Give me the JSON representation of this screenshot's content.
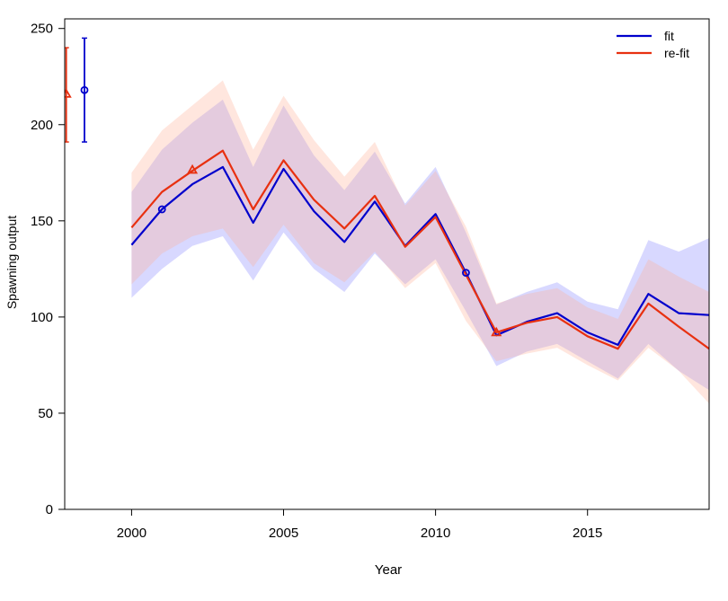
{
  "chart_data": {
    "type": "line",
    "title": "",
    "xlabel": "Year",
    "ylabel": "Spawning output",
    "xlim": [
      1997.8,
      2019
    ],
    "ylim": [
      0,
      255
    ],
    "x_ticks": [
      2000,
      2005,
      2010,
      2015
    ],
    "y_ticks": [
      0,
      50,
      100,
      150,
      200,
      250
    ],
    "grid": false,
    "legend_position": "top-right",
    "series": [
      {
        "name": "fit",
        "color": "#0000cc",
        "band_color": "#7d7dff",
        "x": [
          2000,
          2001,
          2002,
          2003,
          2004,
          2005,
          2006,
          2007,
          2008,
          2009,
          2010,
          2011,
          2012,
          2013,
          2014,
          2015,
          2016,
          2017,
          2018,
          2019
        ],
        "values": [
          137.5,
          156,
          169,
          178,
          149,
          177,
          155,
          139,
          160,
          137,
          153.5,
          123,
          90.5,
          97.5,
          102,
          92,
          85.5,
          112,
          102,
          101
        ],
        "lower": [
          110,
          125,
          137,
          142,
          119,
          144,
          125,
          113,
          133,
          117,
          130,
          103,
          74.5,
          82,
          86,
          77,
          68,
          86,
          72,
          62
        ],
        "upper": [
          165,
          187,
          201,
          213,
          178,
          210,
          184,
          166,
          186,
          159,
          178,
          144,
          106.5,
          113,
          118,
          108,
          104,
          140,
          134,
          141
        ],
        "marker": "circle",
        "marker_points": [
          {
            "x": 2001,
            "y": 156
          },
          {
            "x": 2011,
            "y": 123
          }
        ],
        "virgin": {
          "x": 1998.45,
          "y": 218,
          "lower": 191,
          "upper": 245
        }
      },
      {
        "name": "re-fit",
        "color": "#e83010",
        "band_color": "#ffab91",
        "x": [
          2000,
          2001,
          2002,
          2003,
          2004,
          2005,
          2006,
          2007,
          2008,
          2009,
          2010,
          2011,
          2012,
          2013,
          2014,
          2015,
          2016,
          2017,
          2018,
          2019
        ],
        "values": [
          146.5,
          165,
          176,
          186.5,
          156,
          181.5,
          161,
          146,
          163,
          136.5,
          152,
          122,
          92,
          97,
          100,
          90,
          83.5,
          107,
          95,
          83.5
        ],
        "lower": [
          117,
          133,
          142,
          146,
          126,
          148,
          128,
          118,
          134,
          115,
          128,
          98,
          77,
          81,
          84,
          75,
          67,
          84,
          72,
          55
        ],
        "upper": [
          175,
          197,
          210,
          223,
          187,
          215,
          192,
          173,
          191,
          158,
          176,
          147,
          107,
          112,
          115,
          105,
          99,
          130,
          121,
          113
        ],
        "marker": "triangle",
        "marker_points": [
          {
            "x": 2002,
            "y": 176.5
          },
          {
            "x": 2012,
            "y": 92
          }
        ],
        "virgin": {
          "x": 1997.85,
          "y": 216,
          "lower": 191,
          "upper": 240
        }
      }
    ]
  }
}
